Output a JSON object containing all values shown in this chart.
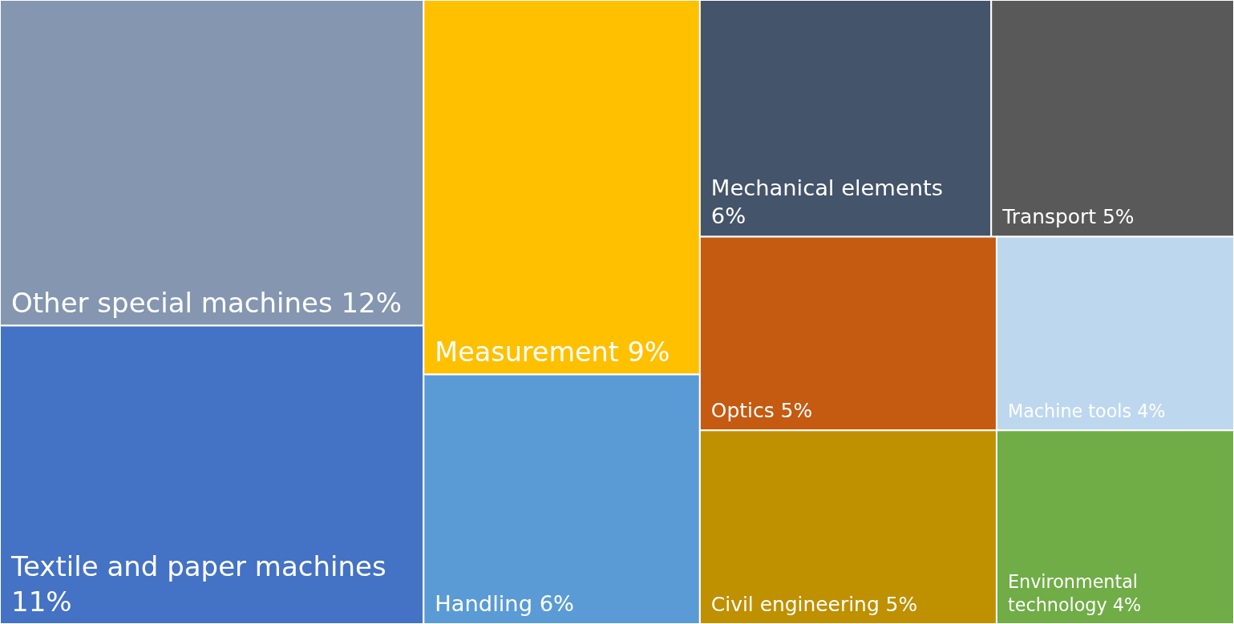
{
  "chart_data": {
    "type": "other",
    "categories": [
      "Other special machines",
      "Textile and paper machines",
      "Measurement",
      "Handling",
      "Mechanical elements",
      "Transport",
      "Optics",
      "Civil engineering",
      "Machine tools",
      "Environmental technology"
    ],
    "values": [
      12,
      11,
      9,
      6,
      6,
      5,
      5,
      5,
      4,
      4
    ],
    "value_labels": [
      "12%",
      "11%",
      "9%",
      "6%",
      "6%",
      "5%",
      "5%",
      "5%",
      "4%",
      "4%"
    ],
    "colors": [
      "#8496b0",
      "#4472c4",
      "#ffc000",
      "#5b9bd5",
      "#44546a",
      "#595959",
      "#c55a11",
      "#bf9000",
      "#bdd7ee",
      "#70ad47"
    ]
  }
}
